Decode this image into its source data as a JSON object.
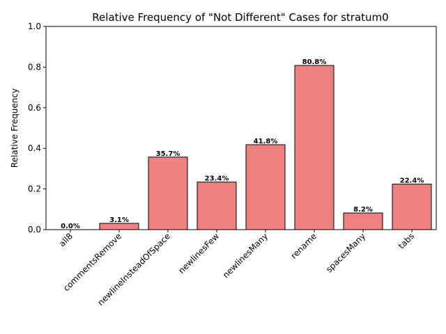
{
  "chart_data": {
    "type": "bar",
    "title": "Relative Frequency of \"Not Different\" Cases for stratum0",
    "xlabel": "",
    "ylabel": "Relative Frequency",
    "ylim": [
      0,
      1.0
    ],
    "yticks": [
      "0.0",
      "0.2",
      "0.4",
      "0.6",
      "0.8",
      "1.0"
    ],
    "categories": [
      "all8",
      "commentsRemove",
      "newlineInsteadOfSpace",
      "newlinesFew",
      "newlinesMany",
      "rename",
      "spacesMany",
      "tabs"
    ],
    "values": [
      0.0,
      0.031,
      0.357,
      0.234,
      0.418,
      0.808,
      0.082,
      0.224
    ],
    "data_labels": [
      "0.0%",
      "3.1%",
      "35.7%",
      "23.4%",
      "41.8%",
      "80.8%",
      "8.2%",
      "22.4%"
    ],
    "bar_color": "#f08080",
    "bar_edge_color": "#000000",
    "grid": false,
    "legend": "none"
  }
}
